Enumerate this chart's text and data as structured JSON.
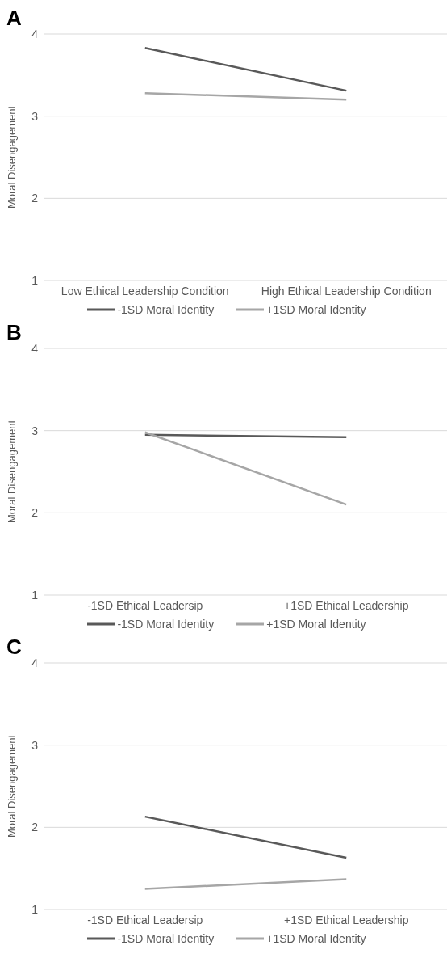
{
  "chart_data": [
    {
      "type": "line",
      "title": "A",
      "ylabel": "Moral Disengagement",
      "categories": [
        "Low Ethical Leadership Condition",
        "High Ethical Leadership Condition"
      ],
      "ylim": [
        1,
        4
      ],
      "yticks": [
        1,
        2,
        3,
        4
      ],
      "grid": "y",
      "legend": "bottom",
      "marker": "none",
      "series": [
        {
          "name": "-1SD Moral Identity",
          "color": "#595959",
          "values": [
            3.83,
            3.31
          ]
        },
        {
          "name": "+1SD Moral Identity",
          "color": "#a6a6a6",
          "values": [
            3.28,
            3.2
          ]
        }
      ]
    },
    {
      "type": "line",
      "title": "B",
      "ylabel": "Moral Disengagement",
      "categories": [
        "-1SD Ethical Leadersip",
        "+1SD Ethical Leadership"
      ],
      "ylim": [
        1,
        4
      ],
      "yticks": [
        1,
        2,
        3,
        4
      ],
      "grid": "y",
      "legend": "bottom",
      "marker": "none",
      "series": [
        {
          "name": "-1SD Moral Identity",
          "color": "#595959",
          "values": [
            2.95,
            2.92
          ]
        },
        {
          "name": "+1SD Moral Identity",
          "color": "#a6a6a6",
          "values": [
            2.98,
            2.1
          ]
        }
      ]
    },
    {
      "type": "line",
      "title": "C",
      "ylabel": "Moral Disengagement",
      "categories": [
        "-1SD Ethical Leadersip",
        "+1SD Ethical Leadership"
      ],
      "ylim": [
        1,
        4
      ],
      "yticks": [
        1,
        2,
        3,
        4
      ],
      "grid": "y",
      "legend": "bottom",
      "marker": "none",
      "series": [
        {
          "name": "-1SD Moral Identity",
          "color": "#595959",
          "values": [
            2.13,
            1.63
          ]
        },
        {
          "name": "+1SD Moral Identity",
          "color": "#a6a6a6",
          "values": [
            1.25,
            1.37
          ]
        }
      ]
    }
  ]
}
